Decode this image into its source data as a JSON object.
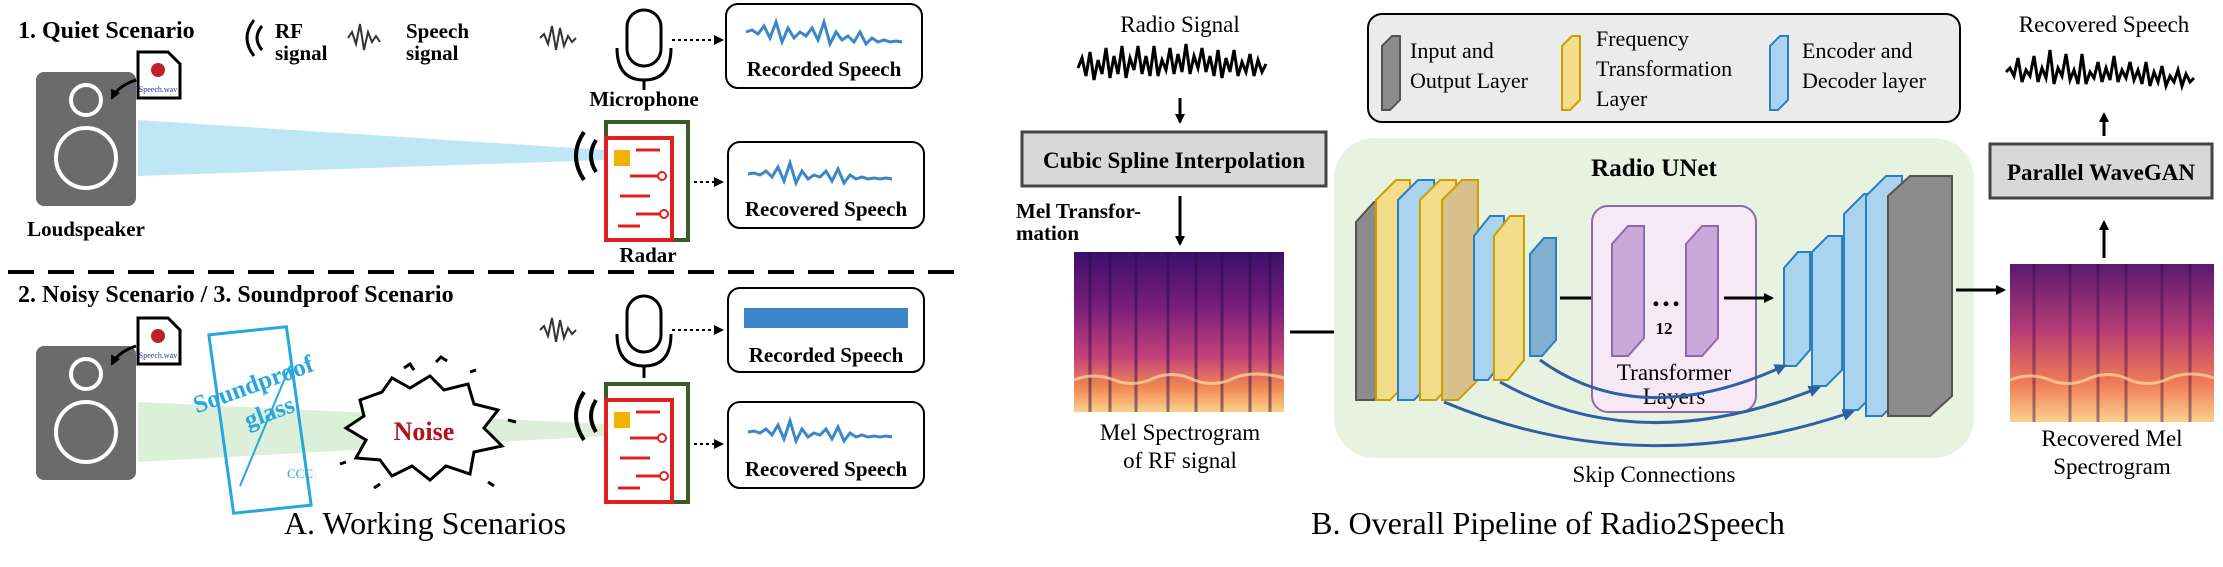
{
  "panel_a": {
    "caption": "A. Working Scenarios",
    "quiet_title": "1. Quiet Scenario",
    "noisy_title": "2. Noisy Scenario / 3. Soundproof Scenario",
    "legend_rf_line1": "RF",
    "legend_rf_line2": "signal",
    "legend_speech_line1": "Speech",
    "legend_speech_line2": "signal",
    "microphone_label": "Microphone",
    "loudspeaker_label": "Loudspeaker",
    "radar_label": "Radar",
    "recorded_speech": "Recorded Speech",
    "recovered_speech": "Recovered Speech",
    "file_label": "Speech.wav",
    "soundproof_line1": "Soundproof",
    "soundproof_line2": "glass",
    "ccc": "CCC",
    "noise": "Noise"
  },
  "panel_b": {
    "caption": "B. Overall Pipeline of Radio2Speech",
    "radio_signal": "Radio Signal",
    "cubic_spline": "Cubic Spline Interpolation",
    "mel_transform_line1": "Mel Transfor-",
    "mel_transform_line2": "mation",
    "mel_rf_line1": "Mel Spectrogram",
    "mel_rf_line2": "of RF signal",
    "radio_unet": "Radio UNet",
    "transformer_count": "12",
    "transformer_line1": "Transformer",
    "transformer_line2": "Layers",
    "skip_connections": "Skip Connections",
    "parallel_wavegan": "Parallel WaveGAN",
    "recovered_speech": "Recovered Speech",
    "recovered_mel_line1": "Recovered Mel",
    "recovered_mel_line2": "Spectrogram",
    "legend": {
      "io_line1": "Input and",
      "io_line2": "Output Layer",
      "freq_line1": "Frequency",
      "freq_line2": "Transformation",
      "freq_line3": "Layer",
      "enc_line1": "Encoder and",
      "enc_line2": "Decoder layer"
    }
  },
  "colors": {
    "waveform_blue": "#3a86c8",
    "radar_red": "#e02020",
    "radar_green": "#3d5a2a",
    "io_gray": "#8c8c8c",
    "freq_yellow": "#f3dc8a",
    "enc_blue": "#a9d3ef",
    "transformer_purple": "#c9a9dc",
    "unet_bg": "#e8f2e0",
    "beam_blue": "#bfe6f5",
    "beam_green": "#dcefd8",
    "soundproof_blue": "#27a6e0"
  }
}
